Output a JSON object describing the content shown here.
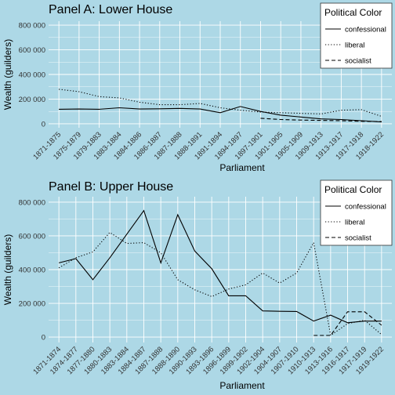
{
  "chart_data": [
    {
      "type": "line",
      "title": "Panel A: Lower House",
      "xlabel": "Parliament",
      "ylabel": "Wealth (guilders)",
      "ylim": [
        0,
        800000
      ],
      "yticks": [
        0,
        200000,
        400000,
        600000,
        800000
      ],
      "ytick_labels": [
        "0",
        "200 000",
        "400 000",
        "600 000",
        "800 000"
      ],
      "legend_title": "Political Color",
      "legend_position": "top-right",
      "grid": true,
      "categories": [
        "1871-1875",
        "1875-1879",
        "1879-1883",
        "1883-1884",
        "1884-1886",
        "1886-1887",
        "1887-1888",
        "1888-1891",
        "1891-1894",
        "1894-1897",
        "1897-1901",
        "1901-1905",
        "1905-1909",
        "1909-1913",
        "1913-1917",
        "1917-1918",
        "1918-1922"
      ],
      "series": [
        {
          "name": "confessional",
          "dash": "solid",
          "values": [
            118000,
            120000,
            118000,
            130000,
            120000,
            122000,
            125000,
            120000,
            90000,
            140000,
            100000,
            70000,
            55000,
            40000,
            35000,
            25000,
            15000
          ]
        },
        {
          "name": "liberal",
          "dash": "dotted",
          "values": [
            280000,
            260000,
            220000,
            210000,
            175000,
            155000,
            155000,
            165000,
            130000,
            110000,
            95000,
            90000,
            85000,
            80000,
            110000,
            115000,
            60000
          ]
        },
        {
          "name": "socialist",
          "dash": "dashed",
          "values": [
            null,
            null,
            null,
            null,
            null,
            null,
            null,
            null,
            null,
            null,
            45000,
            35000,
            30000,
            28000,
            25000,
            20000,
            18000
          ]
        }
      ]
    },
    {
      "type": "line",
      "title": "Panel B: Upper House",
      "xlabel": "Parliament",
      "ylabel": "Wealth (guilders)",
      "ylim": [
        0,
        800000
      ],
      "yticks": [
        0,
        200000,
        400000,
        600000,
        800000
      ],
      "ytick_labels": [
        "0",
        "200 000",
        "400 000",
        "600 000",
        "800 000"
      ],
      "legend_title": "Political Color",
      "legend_position": "top-right",
      "grid": true,
      "categories": [
        "1871-1874",
        "1874-1877",
        "1877-1880",
        "1880-1883",
        "1883-1884",
        "1884-1887",
        "1887-1888",
        "1888-1890",
        "1890-1893",
        "1893-1896",
        "1896-1899",
        "1899-1902",
        "1902-1904",
        "1904-1907",
        "1907-1910",
        "1910-1913",
        "1913-1916",
        "1916-1917",
        "1917-1919",
        "1919-1922"
      ],
      "series": [
        {
          "name": "confessional",
          "dash": "solid",
          "values": [
            440000,
            465000,
            340000,
            470000,
            610000,
            750000,
            440000,
            725000,
            510000,
            405000,
            245000,
            245000,
            155000,
            153000,
            152000,
            95000,
            130000,
            85000,
            95000,
            95000
          ]
        },
        {
          "name": "liberal",
          "dash": "dotted",
          "values": [
            410000,
            470000,
            505000,
            620000,
            555000,
            560000,
            500000,
            340000,
            280000,
            240000,
            285000,
            310000,
            380000,
            320000,
            380000,
            560000,
            10000,
            80000,
            100000,
            15000
          ]
        },
        {
          "name": "socialist",
          "dash": "dashed",
          "values": [
            null,
            null,
            null,
            null,
            null,
            null,
            null,
            null,
            null,
            null,
            null,
            null,
            null,
            null,
            null,
            10000,
            10000,
            150000,
            150000,
            70000
          ]
        }
      ]
    }
  ]
}
